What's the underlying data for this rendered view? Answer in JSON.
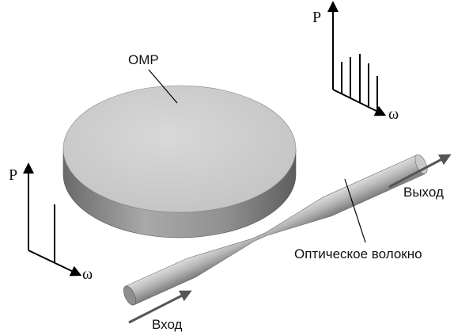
{
  "labels": {
    "resonator": "OMP",
    "fiber": "Оптическое волокно",
    "input": "Вход",
    "output": "Выход"
  },
  "input_spectrum": {
    "y_axis": "P",
    "x_axis": "ω",
    "lines": 1
  },
  "output_spectrum": {
    "y_axis": "P",
    "x_axis": "ω",
    "lines": 5
  },
  "colors": {
    "disk_top": "#cfcfcf",
    "disk_side": "#8a8a8a",
    "fiber": "#b5b5b5",
    "arrow": "#555555",
    "axes": "#000000"
  }
}
